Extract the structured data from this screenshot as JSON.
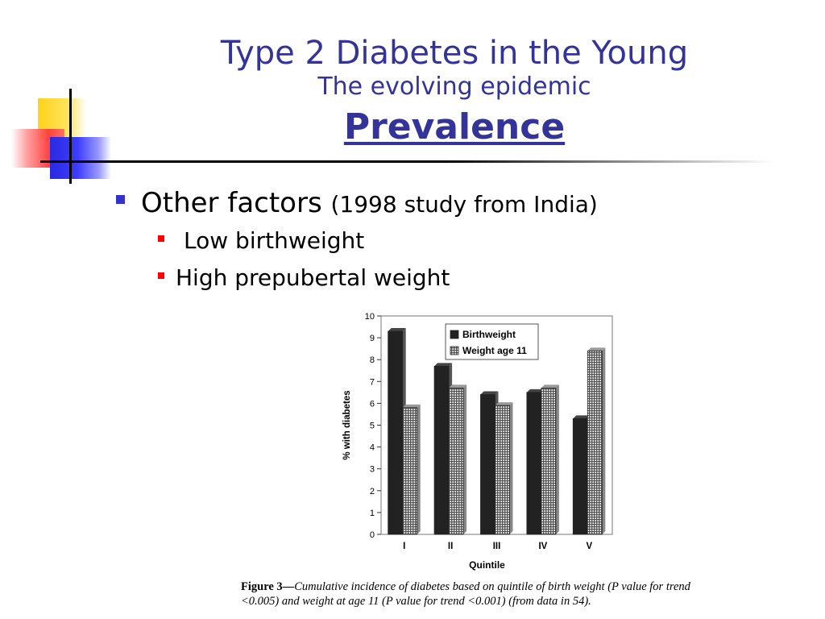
{
  "slide": {
    "title": "Type 2 Diabetes in the Young",
    "subtitle": "The evolving epidemic",
    "section": "Prevalence"
  },
  "bullets": {
    "level1": {
      "text": "Other factors",
      "note": "(1998 study from India)"
    },
    "level2": [
      "Low birthweight",
      "High prepubertal weight"
    ]
  },
  "figure": {
    "label": "Figure 3—",
    "caption": "Cumulative incidence of diabetes based on quintile of birth weight (P value for trend <0.005) and weight at age 11 (P value for trend <0.001) (from data in 54)."
  },
  "colors": {
    "title": "#333399",
    "bullet_l1": "#3333cc",
    "bullet_l2": "#ff0000"
  },
  "chart_data": {
    "type": "bar",
    "categories": [
      "I",
      "II",
      "III",
      "IV",
      "V"
    ],
    "series": [
      {
        "name": "Birthweight",
        "values": [
          9.3,
          7.7,
          6.4,
          6.5,
          5.3
        ]
      },
      {
        "name": "Weight age 11",
        "values": [
          5.8,
          6.7,
          5.9,
          6.7,
          8.4
        ]
      }
    ],
    "xlabel": "Quintile",
    "ylabel": "% with diabetes",
    "ylim": [
      0,
      10
    ],
    "yticks": [
      0,
      1,
      2,
      3,
      4,
      5,
      6,
      7,
      8,
      9,
      10
    ],
    "legend": "top-right",
    "grid": false
  }
}
